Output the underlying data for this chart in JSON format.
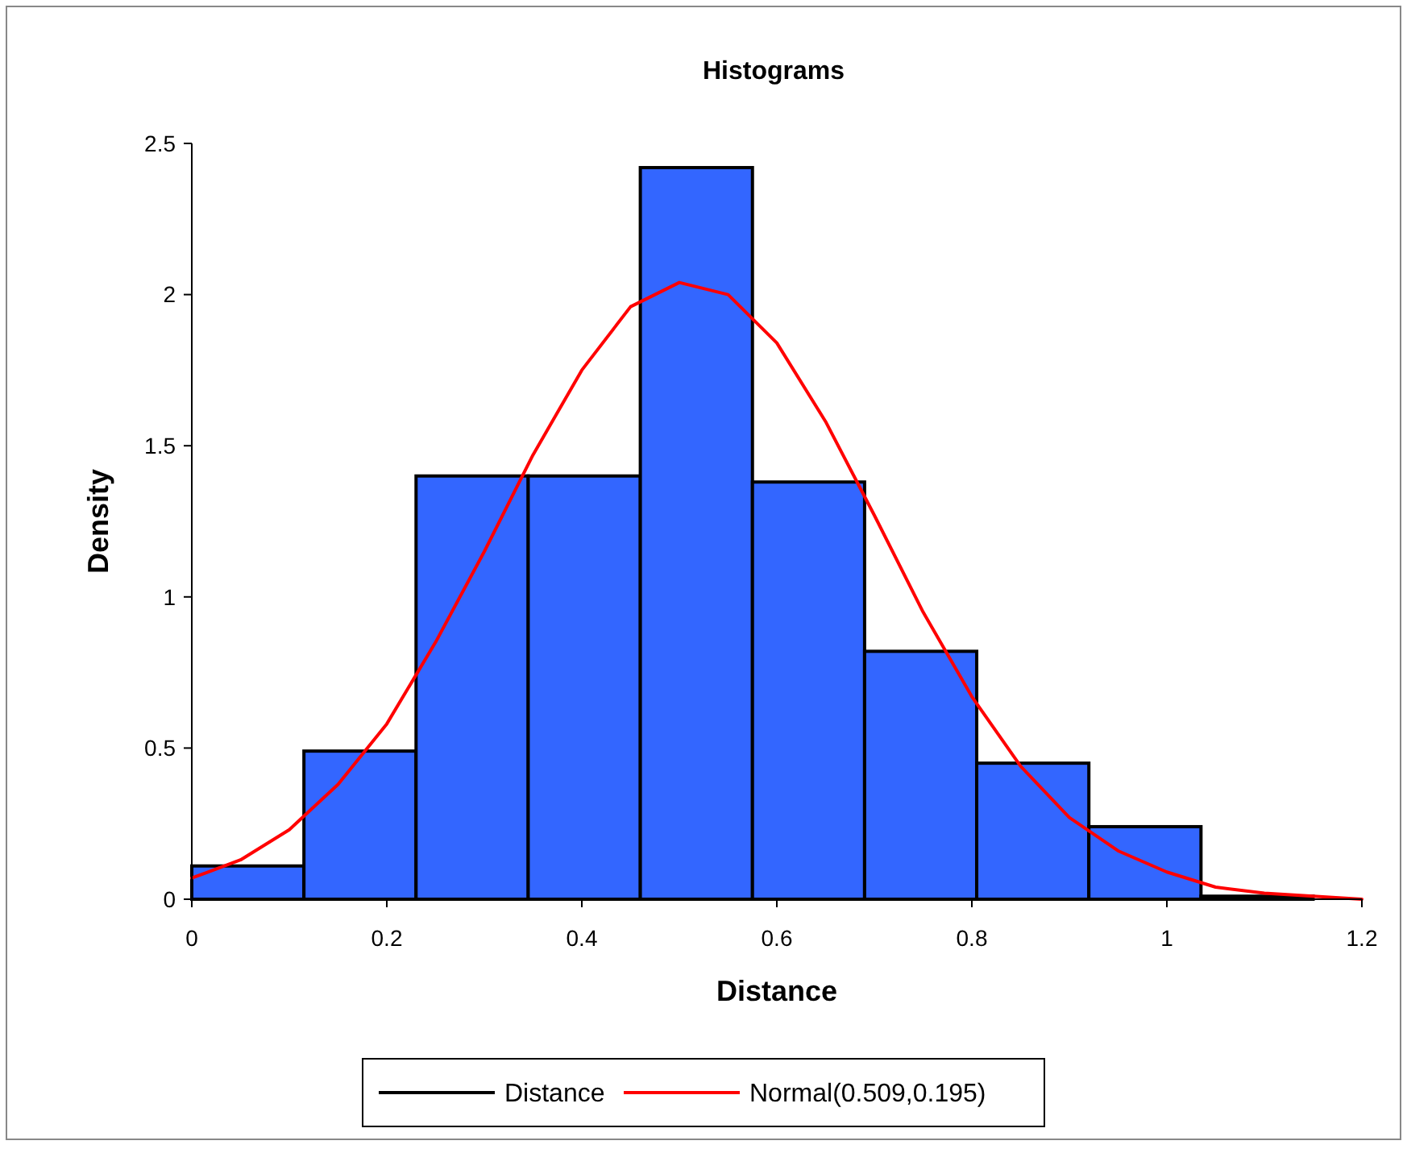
{
  "chart_data": {
    "type": "histogram",
    "title": "Histograms",
    "xlabel": "Distance",
    "ylabel": "Density",
    "bins": [
      0,
      0.115,
      0.23,
      0.345,
      0.46,
      0.575,
      0.69,
      0.805,
      0.92,
      1.035,
      1.15
    ],
    "series": [
      {
        "name": "Distance",
        "color": "#3366ff",
        "values": [
          0.11,
          0.49,
          1.4,
          1.4,
          2.42,
          1.38,
          0.82,
          0.45,
          0.24,
          0.01
        ]
      },
      {
        "name": "Normal(0.509,0.195)",
        "type": "line",
        "color": "#ff0000",
        "x": [
          0,
          0.05,
          0.1,
          0.15,
          0.2,
          0.25,
          0.3,
          0.35,
          0.4,
          0.45,
          0.5,
          0.55,
          0.6,
          0.65,
          0.7,
          0.75,
          0.8,
          0.85,
          0.9,
          0.95,
          1,
          1.05,
          1.1,
          1.15,
          1.2
        ],
        "values": [
          0.07,
          0.13,
          0.23,
          0.38,
          0.58,
          0.85,
          1.15,
          1.47,
          1.75,
          1.96,
          2.04,
          2,
          1.84,
          1.58,
          1.27,
          0.95,
          0.67,
          0.44,
          0.27,
          0.16,
          0.09,
          0.04,
          0.02,
          0.01,
          0
        ]
      }
    ],
    "xlim": [
      0,
      1.2
    ],
    "xticks": [
      0,
      0.2,
      0.4,
      0.6,
      0.8,
      1,
      1.2
    ],
    "ylim": [
      0,
      2.5
    ],
    "yticks": [
      0,
      0.5,
      1,
      1.5,
      2,
      2.5
    ],
    "legend": "bottom",
    "grid": false
  }
}
